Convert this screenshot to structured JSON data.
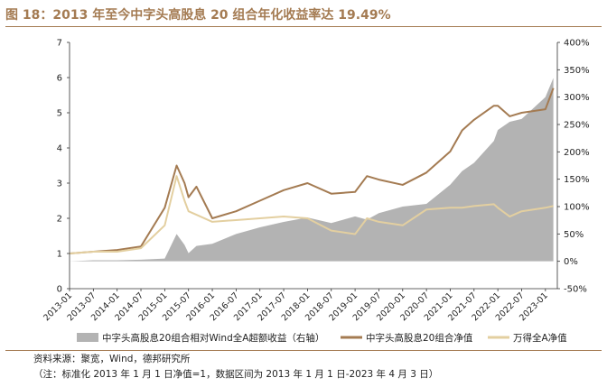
{
  "figure": {
    "title": "图 18：2013 年至今中字头高股息 20 组合年化收益率达 19.49%",
    "source": "资料来源：聚宽，Wind，德邦研究所",
    "note": "（注：标准化 2013 年 1 月 1 日净值=1，数据区间为 2013 年 1 月 1 日-2023 年 4 月 3 日）"
  },
  "colors": {
    "title": "#a47b52",
    "excess_area": "#b3b3b3",
    "portfolio_line": "#a47b52",
    "benchmark_line": "#e3cfa0"
  },
  "chart_data": {
    "type": "line",
    "x_type": "date",
    "x": [
      "2013-01",
      "2013-07",
      "2014-01",
      "2014-07",
      "2015-01",
      "2015-04",
      "2015-06",
      "2015-07",
      "2015-09",
      "2016-01",
      "2016-07",
      "2017-01",
      "2017-07",
      "2018-01",
      "2018-07",
      "2019-01",
      "2019-04",
      "2019-07",
      "2020-01",
      "2020-07",
      "2021-01",
      "2021-04",
      "2021-07",
      "2021-12",
      "2022-01",
      "2022-04",
      "2022-07",
      "2023-01",
      "2023-03"
    ],
    "series": [
      {
        "name": "中字头高股息20组合相对Wind全A超额收益（右轴）",
        "type": "area",
        "axis": "right",
        "values": [
          0.0,
          0.02,
          0.02,
          0.03,
          0.05,
          0.5,
          0.3,
          0.15,
          0.28,
          0.32,
          0.5,
          0.62,
          0.72,
          0.8,
          0.7,
          0.82,
          0.76,
          0.88,
          1.0,
          1.05,
          1.4,
          1.65,
          1.8,
          2.2,
          2.4,
          2.55,
          2.6,
          3.0,
          3.35
        ]
      },
      {
        "name": "中字头高股息20组合净值",
        "type": "line",
        "axis": "left",
        "values": [
          1.0,
          1.05,
          1.1,
          1.2,
          2.3,
          3.5,
          3.0,
          2.6,
          2.9,
          2.0,
          2.2,
          2.5,
          2.8,
          3.0,
          2.7,
          2.75,
          3.2,
          3.1,
          2.95,
          3.3,
          3.9,
          4.5,
          4.8,
          5.2,
          5.2,
          4.9,
          5.0,
          5.1,
          5.7
        ]
      },
      {
        "name": "万得全A净值",
        "type": "line",
        "axis": "left",
        "values": [
          1.0,
          1.05,
          1.05,
          1.15,
          1.8,
          3.2,
          2.5,
          2.2,
          2.1,
          1.9,
          1.95,
          2.0,
          2.05,
          2.0,
          1.65,
          1.55,
          2.0,
          1.9,
          1.8,
          2.25,
          2.3,
          2.3,
          2.35,
          2.4,
          2.3,
          2.05,
          2.2,
          2.3,
          2.35
        ]
      }
    ],
    "x_tick_labels": [
      "2013-01",
      "2013-07",
      "2014-01",
      "2014-07",
      "2015-01",
      "2015-07",
      "2016-01",
      "2016-07",
      "2017-01",
      "2017-07",
      "2018-01",
      "2018-07",
      "2019-01",
      "2019-07",
      "2020-01",
      "2020-07",
      "2021-01",
      "2021-07",
      "2022-01",
      "2022-07",
      "2023-01"
    ],
    "y_left": {
      "min": 0,
      "max": 7,
      "ticks": [
        "0",
        "1",
        "2",
        "3",
        "4",
        "5",
        "6",
        "7"
      ]
    },
    "y_right": {
      "min": -0.5,
      "max": 4.0,
      "ticks": [
        "-50%",
        "0%",
        "50%",
        "100%",
        "150%",
        "200%",
        "250%",
        "300%",
        "350%",
        "400%"
      ]
    },
    "legend_position": "bottom",
    "grid": false
  }
}
